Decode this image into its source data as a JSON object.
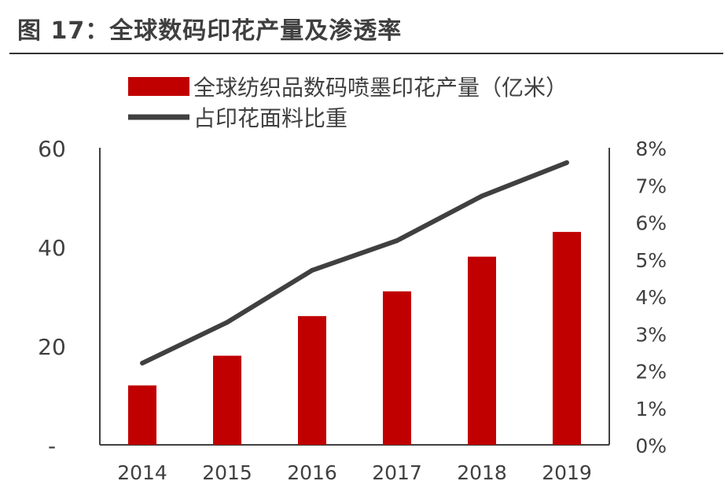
{
  "title": "图 17：全球数码印花产量及渗透率",
  "chart_data": {
    "type": "bar",
    "categories": [
      "2014",
      "2015",
      "2016",
      "2017",
      "2018",
      "2019"
    ],
    "series": [
      {
        "name": "全球纺织品数码喷墨印花产量（亿米）",
        "type": "bar",
        "axis": "left",
        "color": "#c00000",
        "values": [
          12,
          18,
          26,
          31,
          38,
          43
        ]
      },
      {
        "name": "占印花面料比重",
        "type": "line",
        "axis": "right",
        "color": "#404040",
        "values": [
          0.022,
          0.033,
          0.047,
          0.055,
          0.067,
          0.076
        ]
      }
    ],
    "y_left": {
      "ylim": [
        0,
        60
      ],
      "ticks": [
        0,
        20,
        40,
        60
      ],
      "tick_labels": [
        "-",
        "20",
        "40",
        "60"
      ]
    },
    "y_right": {
      "ylim": [
        0,
        0.08
      ],
      "ticks": [
        0,
        0.01,
        0.02,
        0.03,
        0.04,
        0.05,
        0.06,
        0.07,
        0.08
      ],
      "tick_labels": [
        "0%",
        "1%",
        "2%",
        "3%",
        "4%",
        "5%",
        "6%",
        "7%",
        "8%"
      ]
    },
    "legend": "top-left",
    "grid": false
  }
}
